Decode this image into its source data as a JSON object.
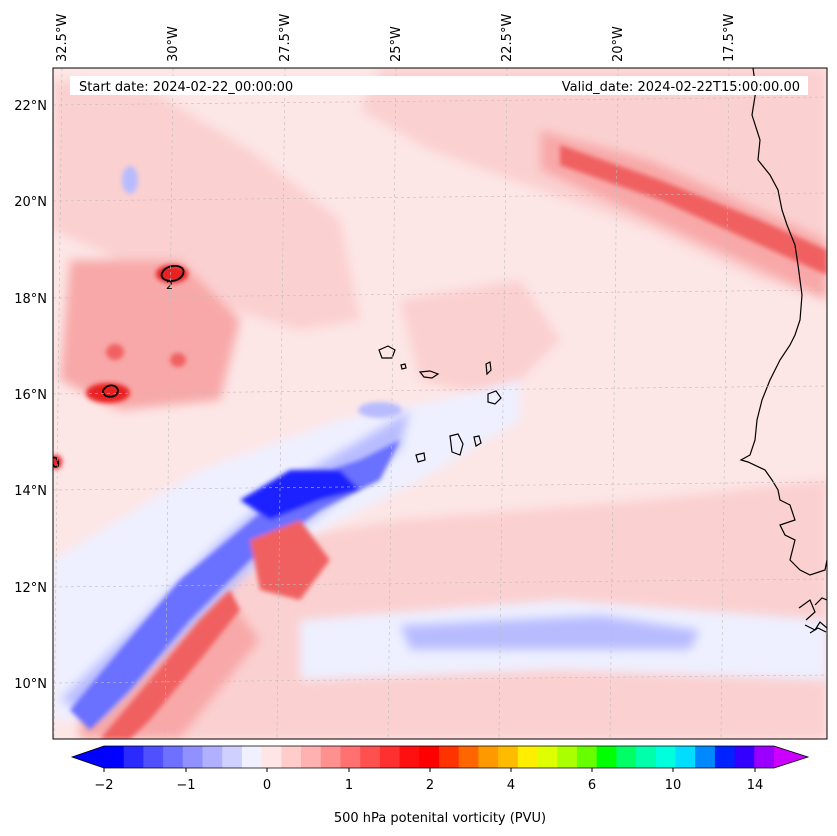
{
  "header": {
    "start_date": "Start date: 2024-02-22_00:00:00",
    "valid_date": "Valid_date: 2024-02-22T15:00:00.00"
  },
  "map": {
    "longitude_labels": [
      "32.5°W",
      "30°W",
      "27.5°W",
      "25°W",
      "22.5°W",
      "20°W",
      "17.5°W"
    ],
    "latitude_labels": [
      "22°N",
      "20°N",
      "18°N",
      "16°N",
      "14°N",
      "12°N",
      "10°N"
    ],
    "contour_label": "2",
    "colors": {
      "background": "#fde6e6",
      "light_pink": "#fbd0d0",
      "mid_pink": "#f8a8a8",
      "red": "#f06060",
      "strong_red": "#e82020",
      "light_blue": "#eef0ff",
      "mid_blue": "#b8bcff",
      "blue": "#6a70ff",
      "strong_blue": "#1a22ff",
      "coastline": "#000000",
      "gridline": "#bdbdbd"
    }
  },
  "colorbar": {
    "title": "500 hPa potenital vorticity (PVU)",
    "tick_labels": [
      "−2",
      "−1",
      "0",
      "1",
      "2",
      "4",
      "6",
      "10",
      "14"
    ],
    "colors": [
      "#0000ff",
      "#2a2aff",
      "#5050ff",
      "#7070ff",
      "#9090ff",
      "#b0b0ff",
      "#d0d0ff",
      "#f0f0ff",
      "#ffe6e6",
      "#ffcccc",
      "#ffb0b0",
      "#ff9090",
      "#ff7070",
      "#ff5050",
      "#ff3030",
      "#ff1010",
      "#ff0000",
      "#ff3300",
      "#ff6600",
      "#ff9900",
      "#ffbb00",
      "#ffee00",
      "#ddff00",
      "#aaff00",
      "#66ff00",
      "#00ff00",
      "#00ff66",
      "#00ffaa",
      "#00ffdd",
      "#00ddff",
      "#0088ff",
      "#0022ff",
      "#3300ff",
      "#9900ff"
    ],
    "arrow_low_color": "#0000ff",
    "arrow_high_color": "#cc00ff"
  }
}
